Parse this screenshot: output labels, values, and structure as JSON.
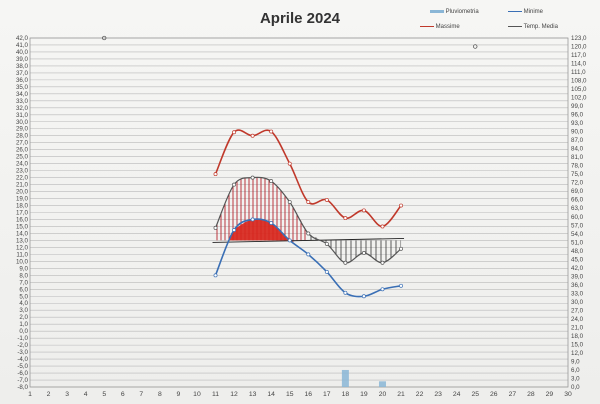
{
  "chart_data": {
    "type": "line",
    "title": "Aprile 2024",
    "legend": [
      {
        "name": "Pluviometria",
        "color": "#8ab6d6",
        "marker": "bar"
      },
      {
        "name": "Minime",
        "color": "#3a6fb5",
        "marker": "line"
      },
      {
        "name": "Massime",
        "color": "#c0392b",
        "marker": "line"
      },
      {
        "name": "Temp. Media",
        "color": "#555555",
        "marker": "line"
      }
    ],
    "x_categories": [
      1,
      2,
      3,
      4,
      5,
      6,
      7,
      8,
      9,
      10,
      11,
      12,
      13,
      14,
      15,
      16,
      17,
      18,
      19,
      20,
      21,
      22,
      23,
      24,
      25,
      26,
      27,
      28,
      29,
      30
    ],
    "y_left": {
      "min": -8,
      "max": 42,
      "step": 1
    },
    "y_right": {
      "min": 0,
      "max": 123,
      "step": 3
    },
    "series": [
      {
        "name": "Massime",
        "color": "#c0392b",
        "x": [
          11,
          12,
          13,
          14,
          15,
          16,
          17,
          18,
          19,
          20,
          21
        ],
        "values": [
          22.5,
          28.5,
          28.0,
          28.6,
          24.0,
          18.5,
          18.8,
          16.2,
          17.3,
          15.0,
          18.0
        ]
      },
      {
        "name": "Minime",
        "color": "#3a6fb5",
        "x": [
          11,
          12,
          13,
          14,
          15,
          16,
          17,
          18,
          19,
          20,
          21
        ],
        "values": [
          8.0,
          14.5,
          16.0,
          15.5,
          13.0,
          11.0,
          8.5,
          5.5,
          5.0,
          6.0,
          6.5
        ]
      },
      {
        "name": "Temp. Media",
        "color": "#555555",
        "x": [
          11,
          12,
          13,
          14,
          15,
          16,
          17,
          18,
          19,
          20,
          21
        ],
        "values": [
          14.8,
          21.0,
          22.0,
          21.5,
          18.5,
          14.0,
          12.5,
          9.8,
          11.2,
          9.8,
          11.8
        ]
      },
      {
        "name": "Pluviometria",
        "color": "#8ab6d6",
        "x": [
          18,
          20
        ],
        "values": [
          6.0,
          2.0
        ],
        "axis": "right"
      }
    ],
    "reference_line": {
      "value": 13.0,
      "x_from": 11,
      "x_to": 21
    },
    "stray_markers": [
      {
        "x": 5,
        "y": 42,
        "axis": "left"
      },
      {
        "x": 25,
        "y": 120,
        "axis": "right"
      }
    ],
    "grid": true
  }
}
